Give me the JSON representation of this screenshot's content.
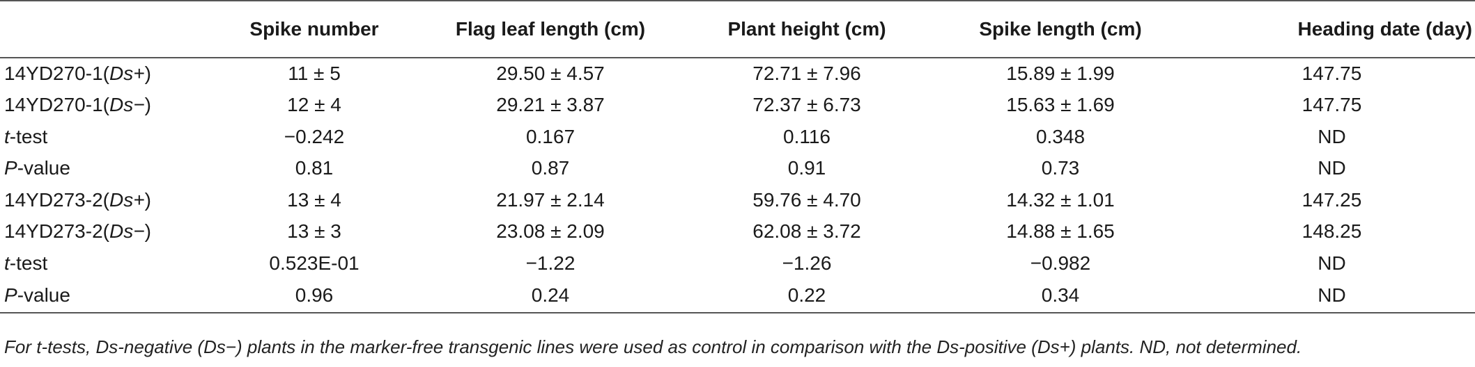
{
  "table": {
    "headers": [
      "",
      "Spike number",
      "Flag leaf length (cm)",
      "Plant height (cm)",
      "Spike length (cm)",
      "Heading date (day)"
    ],
    "rows": [
      {
        "label_pre": "14YD270-1(",
        "label_ital": "Ds+",
        "label_post": ")",
        "values": [
          "11 ± 5",
          "29.50 ± 4.57",
          "72.71 ± 7.96",
          "15.89 ± 1.99",
          "147.75"
        ]
      },
      {
        "label_pre": "14YD270-1(",
        "label_ital": "Ds−",
        "label_post": ")",
        "values": [
          "12 ± 4",
          "29.21 ± 3.87",
          "72.37 ± 6.73",
          "15.63 ± 1.69",
          "147.75"
        ]
      },
      {
        "label_pre": "",
        "label_ital": "t",
        "label_post": "-test",
        "values": [
          "−0.242",
          "0.167",
          "0.116",
          "0.348",
          "ND"
        ]
      },
      {
        "label_pre": "",
        "label_ital": "P",
        "label_post": "-value",
        "values": [
          "0.81",
          "0.87",
          "0.91",
          "0.73",
          "ND"
        ]
      },
      {
        "label_pre": "14YD273-2(",
        "label_ital": "Ds+",
        "label_post": ")",
        "values": [
          "13 ± 4",
          "21.97 ± 2.14",
          "59.76 ± 4.70",
          "14.32 ± 1.01",
          "147.25"
        ]
      },
      {
        "label_pre": "14YD273-2(",
        "label_ital": "Ds−",
        "label_post": ")",
        "values": [
          "13 ± 3",
          "23.08 ± 2.09",
          "62.08 ± 3.72",
          "14.88 ± 1.65",
          "148.25"
        ]
      },
      {
        "label_pre": "",
        "label_ital": "t",
        "label_post": "-test",
        "values": [
          "0.523E-01",
          "−1.22",
          "−1.26",
          "−0.982",
          "ND"
        ]
      },
      {
        "label_pre": "",
        "label_ital": "P",
        "label_post": "-value",
        "values": [
          "0.96",
          "0.24",
          "0.22",
          "0.34",
          "ND"
        ]
      }
    ]
  },
  "footnote": "For t-tests, Ds-negative (Ds−) plants in the marker-free transgenic lines were used as control in comparison with the Ds-positive (Ds+) plants. ND, not determined."
}
